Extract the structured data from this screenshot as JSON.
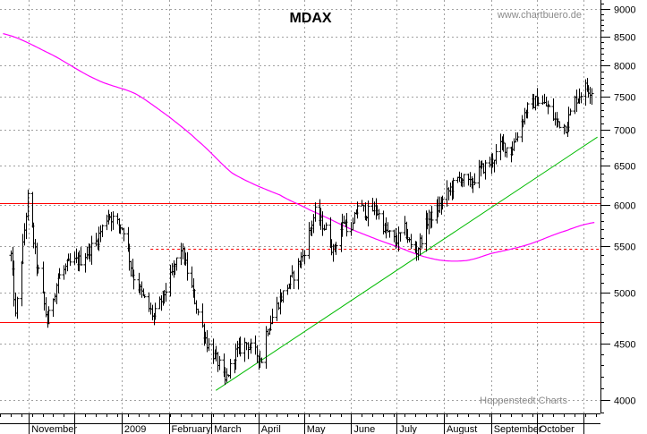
{
  "chart_data": {
    "type": "ohlc",
    "title": "MDAX",
    "source": "www.chartbuero.de",
    "credit": "Hoppenstedt Charts",
    "y_scale": "log",
    "ylim": [
      3750,
      9150
    ],
    "y_ticks": [
      4000,
      4500,
      5000,
      5500,
      6000,
      6500,
      7000,
      7500,
      8000,
      8500,
      9000
    ],
    "y_tick_labels": [
      "4000",
      "4500",
      "5000",
      "5500",
      "6000",
      "6500",
      "7000",
      "7500",
      "8000",
      "8500",
      "9000"
    ],
    "x_labels": [
      "November",
      "2009",
      "February",
      "March",
      "April",
      "May",
      "June",
      "July",
      "August",
      "September",
      "October"
    ],
    "grid": true,
    "price_anchors": [
      [
        "2008-10-20",
        5400
      ],
      [
        "2008-10-23",
        4750
      ],
      [
        "2008-10-28",
        5500
      ],
      [
        "2008-10-31",
        6080
      ],
      [
        "2008-11-06",
        5300
      ],
      [
        "2008-11-13",
        4700
      ],
      [
        "2008-11-20",
        5150
      ],
      [
        "2008-11-27",
        5300
      ],
      [
        "2008-12-05",
        5350
      ],
      [
        "2008-12-15",
        5550
      ],
      [
        "2008-12-23",
        5880
      ],
      [
        "2009-01-02",
        5700
      ],
      [
        "2009-01-08",
        5200
      ],
      [
        "2009-01-15",
        4950
      ],
      [
        "2009-01-22",
        4750
      ],
      [
        "2009-01-28",
        4950
      ],
      [
        "2009-02-02",
        5150
      ],
      [
        "2009-02-09",
        5480
      ],
      [
        "2009-02-15",
        5100
      ],
      [
        "2009-02-20",
        4800
      ],
      [
        "2009-02-26",
        4500
      ],
      [
        "2009-03-06",
        4300
      ],
      [
        "2009-03-10",
        4150
      ],
      [
        "2009-03-16",
        4400
      ],
      [
        "2009-03-24",
        4500
      ],
      [
        "2009-04-03",
        4350
      ],
      [
        "2009-04-06",
        4600
      ],
      [
        "2009-04-14",
        4900
      ],
      [
        "2009-04-23",
        5150
      ],
      [
        "2009-04-30",
        5400
      ],
      [
        "2009-05-08",
        5900
      ],
      [
        "2009-05-15",
        5700
      ],
      [
        "2009-05-20",
        5450
      ],
      [
        "2009-05-27",
        5800
      ],
      [
        "2009-06-01",
        5650
      ],
      [
        "2009-06-05",
        6000
      ],
      [
        "2009-06-11",
        5900
      ],
      [
        "2009-06-17",
        5950
      ],
      [
        "2009-06-23",
        5700
      ],
      [
        "2009-06-30",
        5550
      ],
      [
        "2009-07-06",
        5700
      ],
      [
        "2009-07-10",
        5500
      ],
      [
        "2009-07-14",
        5450
      ],
      [
        "2009-07-21",
        5800
      ],
      [
        "2009-07-28",
        5950
      ],
      [
        "2009-08-05",
        6200
      ],
      [
        "2009-08-12",
        6350
      ],
      [
        "2009-08-18",
        6250
      ],
      [
        "2009-08-25",
        6450
      ],
      [
        "2009-09-01",
        6550
      ],
      [
        "2009-09-08",
        6800
      ],
      [
        "2009-09-14",
        6700
      ],
      [
        "2009-09-18",
        6950
      ],
      [
        "2009-09-24",
        7300
      ],
      [
        "2009-10-01",
        7450
      ],
      [
        "2009-10-08",
        7350
      ],
      [
        "2009-10-13",
        7150
      ],
      [
        "2009-10-20",
        7050
      ],
      [
        "2009-10-26",
        7450
      ],
      [
        "2009-11-02",
        7650
      ],
      [
        "2009-11-06",
        7600
      ]
    ],
    "moving_average_anchors": [
      [
        "2008-10-15",
        8550
      ],
      [
        "2008-11-15",
        8200
      ],
      [
        "2008-12-15",
        7780
      ],
      [
        "2009-01-10",
        7550
      ],
      [
        "2009-02-01",
        7200
      ],
      [
        "2009-02-20",
        6850
      ],
      [
        "2009-03-15",
        6400
      ],
      [
        "2009-04-15",
        6120
      ],
      [
        "2009-05-05",
        5930
      ],
      [
        "2009-06-01",
        5700
      ],
      [
        "2009-07-01",
        5500
      ],
      [
        "2009-07-25",
        5360
      ],
      [
        "2009-08-15",
        5340
      ],
      [
        "2009-09-01",
        5420
      ],
      [
        "2009-09-25",
        5520
      ],
      [
        "2009-10-20",
        5680
      ],
      [
        "2009-11-08",
        5780
      ]
    ],
    "horizontal_lines": [
      {
        "y": 6020,
        "style": "solid",
        "color": "#ff0000"
      },
      {
        "y": 4700,
        "style": "solid",
        "color": "#ff0000"
      },
      {
        "y": 5470,
        "style": "dashed",
        "color": "#ff0000",
        "x_start": "2009-01-20"
      }
    ],
    "trendline": {
      "x1": "2009-03-04",
      "y1": 4080,
      "x2": "2009-11-10",
      "y2": 6900,
      "color": "#00bb00"
    },
    "colors": {
      "bars": "#000000",
      "moving_average": "#ff00ff",
      "support_resistance": "#ff0000",
      "trendline": "#00bb00",
      "grid": "#a0a0a0"
    }
  }
}
